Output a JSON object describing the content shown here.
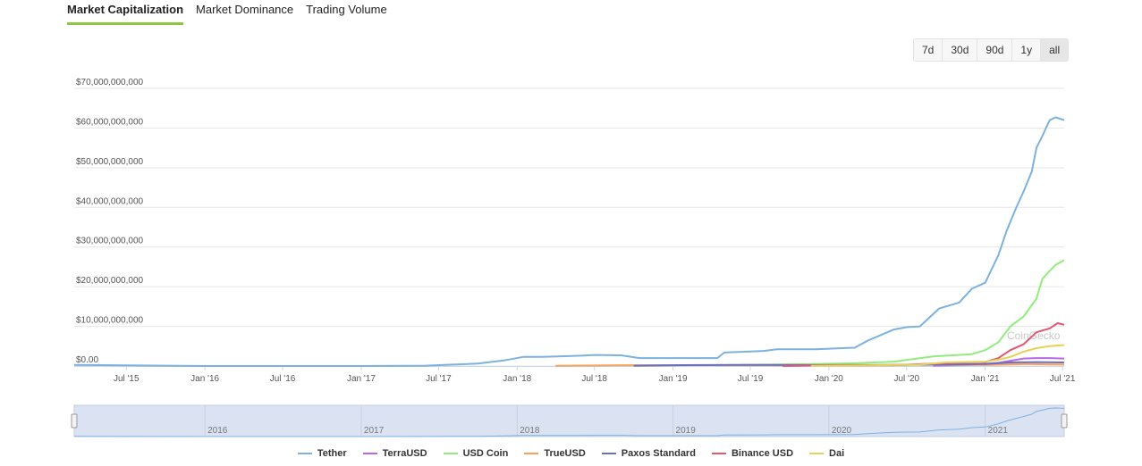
{
  "tabs": [
    {
      "label": "Market Capitalization",
      "active": true
    },
    {
      "label": "Market Dominance",
      "active": false
    },
    {
      "label": "Trading Volume",
      "active": false
    }
  ],
  "ranges": [
    {
      "label": "7d",
      "active": false
    },
    {
      "label": "30d",
      "active": false
    },
    {
      "label": "90d",
      "active": false
    },
    {
      "label": "1y",
      "active": false
    },
    {
      "label": "all",
      "active": true
    }
  ],
  "watermark": "CoinGecko",
  "navigator_years": [
    "2016",
    "2017",
    "2018",
    "2019",
    "2020",
    "2021"
  ],
  "chart_data": {
    "type": "line",
    "ylim": [
      0,
      70000000000
    ],
    "yticks": [
      "$0.00",
      "$10,000,000,000",
      "$20,000,000,000",
      "$30,000,000,000",
      "$40,000,000,000",
      "$50,000,000,000",
      "$60,000,000,000",
      "$70,000,000,000"
    ],
    "xticks": [
      "Jul '15",
      "Jan '16",
      "Jul '16",
      "Jan '17",
      "Jul '17",
      "Jan '18",
      "Jul '18",
      "Jan '19",
      "Jul '19",
      "Jan '20",
      "Jul '20",
      "Jan '21",
      "Jul '21"
    ],
    "grid": true,
    "legend_position": "bottom",
    "series": [
      {
        "name": "Tether",
        "color": "#7cb1e0",
        "x": [
          "2015-03-01",
          "2016-01-01",
          "2017-01-01",
          "2017-06-01",
          "2017-10-01",
          "2017-12-01",
          "2018-01-15",
          "2018-03-01",
          "2018-06-01",
          "2018-07-01",
          "2018-09-01",
          "2018-10-15",
          "2019-01-01",
          "2019-04-15",
          "2019-05-01",
          "2019-08-01",
          "2019-09-01",
          "2019-12-01",
          "2020-02-20",
          "2020-03-01",
          "2020-04-01",
          "2020-06-01",
          "2020-07-01",
          "2020-08-01",
          "2020-09-15",
          "2020-11-01",
          "2020-12-01",
          "2021-01-01",
          "2021-02-01",
          "2021-02-20",
          "2021-03-15",
          "2021-04-01",
          "2021-04-20",
          "2021-05-01",
          "2021-05-15",
          "2021-06-01",
          "2021-06-15",
          "2021-07-05"
        ],
        "values": [
          300000000.0,
          10000000.0,
          10000000.0,
          100000000.0,
          600000000.0,
          1400000000.0,
          2300000000.0,
          2300000000.0,
          2600000000.0,
          2800000000.0,
          2700000000.0,
          2000000000.0,
          2000000000.0,
          2000000000.0,
          3400000000.0,
          3800000000.0,
          4200000000.0,
          4200000000.0,
          4600000000.0,
          4600000000.0,
          6400000000.0,
          9200000000.0,
          9800000000.0,
          10000000000.0,
          14500000000.0,
          16000000000.0,
          19500000000.0,
          21000000000.0,
          28000000000.0,
          34000000000.0,
          40000000000.0,
          44000000000.0,
          49000000000.0,
          55000000000.0,
          58000000000.0,
          62000000000.0,
          62700000000.0,
          62000000000.0
        ]
      },
      {
        "name": "TerraUSD",
        "color": "#b769e5",
        "x": [
          "2020-09-01",
          "2020-12-01",
          "2021-02-01",
          "2021-04-01",
          "2021-05-01",
          "2021-06-01",
          "2021-07-05"
        ],
        "values": [
          100000000.0,
          300000000.0,
          800000000.0,
          1900000000.0,
          2000000000.0,
          2000000000.0,
          1900000000.0
        ]
      },
      {
        "name": "USD Coin",
        "color": "#90ed7d",
        "x": [
          "2018-10-01",
          "2019-06-01",
          "2019-12-01",
          "2020-03-01",
          "2020-06-01",
          "2020-09-01",
          "2020-12-01",
          "2021-01-01",
          "2021-02-01",
          "2021-03-01",
          "2021-04-01",
          "2021-05-01",
          "2021-05-15",
          "2021-06-01",
          "2021-06-15",
          "2021-07-05"
        ],
        "values": [
          100000000.0,
          300000000.0,
          500000000.0,
          700000000.0,
          1100000000.0,
          2400000000.0,
          3000000000.0,
          4000000000.0,
          6000000000.0,
          10000000000.0,
          12500000000.0,
          17000000000.0,
          22000000000.0,
          24000000000.0,
          25500000000.0,
          26700000000.0
        ]
      },
      {
        "name": "TrueUSD",
        "color": "#f7a35c",
        "x": [
          "2018-04-01",
          "2018-09-01",
          "2019-06-01",
          "2020-03-01",
          "2020-08-01",
          "2021-01-01",
          "2021-04-01",
          "2021-07-05"
        ],
        "values": [
          50000000.0,
          200000000.0,
          200000000.0,
          150000000.0,
          350000000.0,
          300000000.0,
          500000000.0,
          350000000.0
        ]
      },
      {
        "name": "Paxos Standard",
        "color": "#6b6fc2",
        "x": [
          "2018-10-01",
          "2019-01-01",
          "2019-07-01",
          "2020-01-01",
          "2020-07-01",
          "2021-01-01",
          "2021-03-01",
          "2021-05-01",
          "2021-07-05"
        ],
        "values": [
          100000000.0,
          200000000.0,
          300000000.0,
          250000000.0,
          300000000.0,
          500000000.0,
          900000000.0,
          1000000000.0,
          900000000.0
        ]
      },
      {
        "name": "Binance USD",
        "color": "#e4576f",
        "x": [
          "2019-09-15",
          "2020-01-01",
          "2020-06-01",
          "2020-09-01",
          "2020-11-01",
          "2021-01-01",
          "2021-02-01",
          "2021-03-01",
          "2021-04-01",
          "2021-05-01",
          "2021-06-01",
          "2021-06-20",
          "2021-07-05"
        ],
        "values": [
          10000000.0,
          200000000.0,
          200000000.0,
          600000000.0,
          900000000.0,
          1000000000.0,
          2000000000.0,
          4000000000.0,
          5500000000.0,
          8500000000.0,
          9500000000.0,
          10800000000.0,
          10400000000.0
        ]
      },
      {
        "name": "Dai",
        "color": "#e4d354",
        "x": [
          "2019-11-20",
          "2020-04-01",
          "2020-08-01",
          "2020-10-01",
          "2021-01-01",
          "2021-02-01",
          "2021-03-01",
          "2021-04-01",
          "2021-05-01",
          "2021-06-01",
          "2021-07-05"
        ],
        "values": [
          50000000.0,
          150000000.0,
          350000000.0,
          900000000.0,
          1100000000.0,
          1600000000.0,
          2300000000.0,
          3600000000.0,
          4500000000.0,
          5000000000.0,
          5300000000.0
        ]
      }
    ]
  }
}
